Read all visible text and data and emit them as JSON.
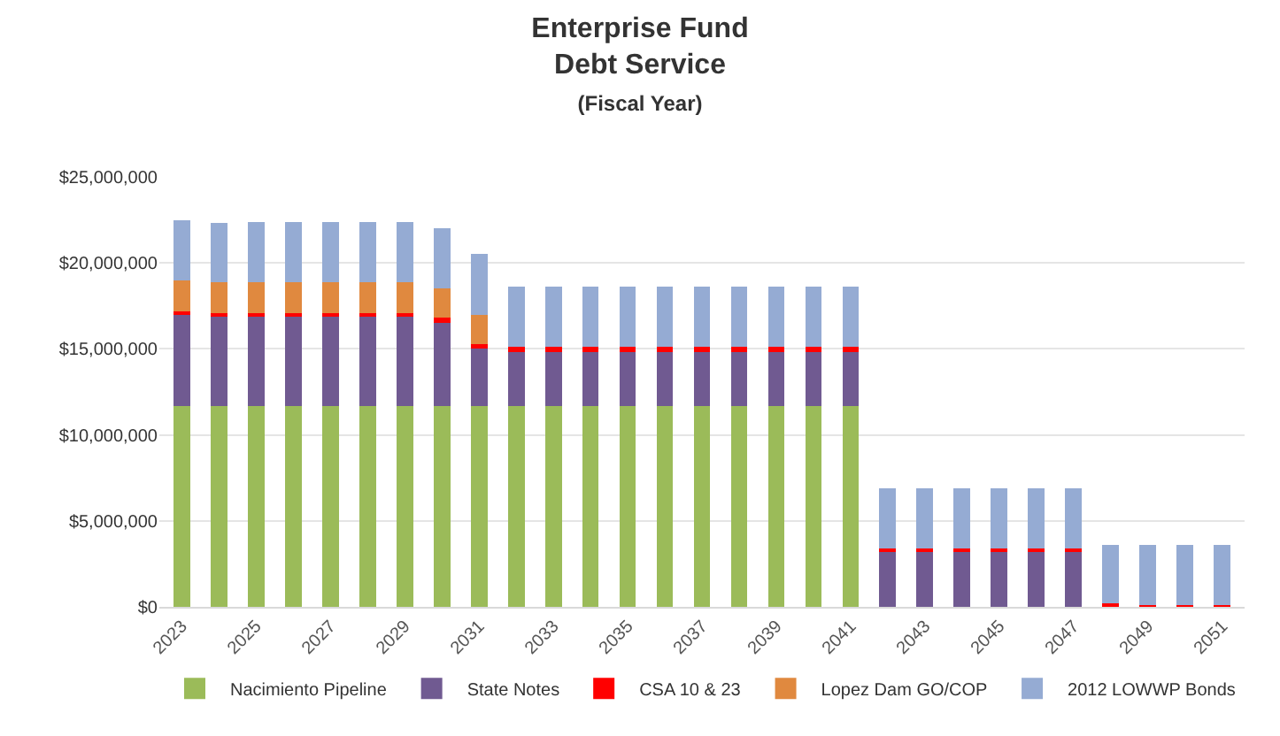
{
  "chart_data": {
    "type": "bar",
    "stacked": true,
    "title": "Enterprise Fund",
    "subtitle": "Debt Service",
    "annotations": [
      "(Fiscal Year)"
    ],
    "categories": [
      "2023",
      null,
      "2025",
      null,
      "2027",
      null,
      "2029",
      null,
      "2031",
      null,
      "2033",
      null,
      "2035",
      null,
      "2037",
      null,
      "2039",
      null,
      "2041",
      null,
      "2043",
      null,
      "2045",
      null,
      "2047",
      null,
      "2049",
      null,
      "2051"
    ],
    "series": [
      {
        "name": "Nacimiento Pipeline",
        "color": "#9bbb59",
        "values": [
          11700000,
          11700000,
          11700000,
          11700000,
          11700000,
          11700000,
          11700000,
          11700000,
          11700000,
          11700000,
          11700000,
          11700000,
          11700000,
          11700000,
          11700000,
          11700000,
          11700000,
          11700000,
          11700000,
          0,
          0,
          0,
          0,
          0,
          0,
          0,
          0,
          0,
          0
        ]
      },
      {
        "name": "State Notes",
        "color": "#705a91",
        "values": [
          5300000,
          5200000,
          5200000,
          5200000,
          5200000,
          5200000,
          5200000,
          4800000,
          3300000,
          3200000,
          3200000,
          3200000,
          3200000,
          3200000,
          3200000,
          3200000,
          3200000,
          3200000,
          3200000,
          3200000,
          3200000,
          3200000,
          3200000,
          3200000,
          3200000,
          0,
          0,
          0,
          0
        ]
      },
      {
        "name": "CSA 10 & 23",
        "color": "#ff0000",
        "values": [
          200000,
          200000,
          200000,
          200000,
          200000,
          200000,
          200000,
          300000,
          300000,
          200000,
          200000,
          200000,
          200000,
          200000,
          200000,
          200000,
          200000,
          200000,
          200000,
          200000,
          200000,
          200000,
          200000,
          200000,
          200000,
          200000,
          100000,
          100000,
          100000
        ]
      },
      {
        "name": "Lopez Dam GO/COP",
        "color": "#e0893f",
        "values": [
          1800000,
          1800000,
          1800000,
          1800000,
          1800000,
          1800000,
          1800000,
          1700000,
          1700000,
          0,
          0,
          0,
          0,
          0,
          0,
          0,
          0,
          0,
          0,
          0,
          0,
          0,
          0,
          0,
          0,
          0,
          0,
          0,
          0
        ]
      },
      {
        "name": "2012 LOWWP Bonds",
        "color": "#95abd3",
        "values": [
          3500000,
          3400000,
          3500000,
          3500000,
          3500000,
          3500000,
          3500000,
          3500000,
          3500000,
          3500000,
          3500000,
          3500000,
          3500000,
          3500000,
          3500000,
          3500000,
          3500000,
          3500000,
          3500000,
          3500000,
          3500000,
          3500000,
          3500000,
          3500000,
          3500000,
          3400000,
          3500000,
          3500000,
          3500000
        ]
      }
    ],
    "ylim": [
      0,
      25000000
    ],
    "yticks": [
      {
        "value": 0,
        "label": "$0"
      },
      {
        "value": 5000000,
        "label": "$5,000,000"
      },
      {
        "value": 10000000,
        "label": "$10,000,000"
      },
      {
        "value": 15000000,
        "label": "$15,000,000"
      },
      {
        "value": 20000000,
        "label": "$20,000,000"
      },
      {
        "value": 25000000,
        "label": "$25,000,000"
      }
    ],
    "grid": "y",
    "legend": "bottom"
  }
}
